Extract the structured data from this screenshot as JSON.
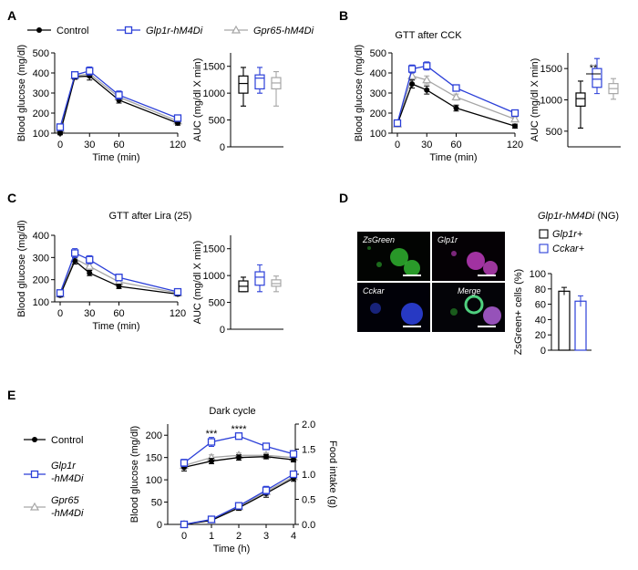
{
  "panels": {
    "A": "A",
    "B": "B",
    "C": "C",
    "D": "D",
    "E": "E"
  },
  "legend": {
    "control": "Control",
    "glp1r": "Glp1r-hM4Di",
    "gpr65": "Gpr65-hM4Di"
  },
  "legendE": {
    "control": "Control",
    "glp1r_l1": "Glp1r",
    "glp1r_l2": "-hM4Di",
    "gpr65_l1": "Gpr65",
    "gpr65_l2": "-hM4Di"
  },
  "colors": {
    "control": "#000000",
    "glp1r": "#2b3fd8",
    "gpr65": "#a6a6a6",
    "green": "#2fb12f",
    "magenta": "#c83fc8",
    "blue": "#2b3fd8"
  },
  "titles": {
    "B": "GTT after CCK",
    "C": "GTT after Lira (25)",
    "D": "Glp1r-hM4Di",
    "D_suffix": " (NG)",
    "E": "Dark cycle"
  },
  "axis": {
    "bg": "Blood glucose (mg/dl)",
    "auc": "AUC (mg/dl X min)",
    "time": "Time (min)",
    "timeh": "Time (h)",
    "food": "Food intake (g)",
    "zs": "ZsGreen+ cells (%)"
  },
  "micro": {
    "zsgreen": "ZsGreen",
    "glp1r": "Glp1r",
    "cckar": "Cckar",
    "merge": "Merge"
  },
  "legendD": {
    "glp1r": "Glp1r+",
    "cckar": "Cckar+"
  },
  "stars": {
    "B": "**",
    "E1": "***",
    "E2": "****"
  },
  "chart_data": [
    {
      "id": "A-gtt",
      "type": "line",
      "xlabel": "Time (min)",
      "ylabel": "Blood glucose (mg/dl)",
      "x": [
        0,
        15,
        30,
        60,
        120
      ],
      "xticks": [
        0,
        30,
        60,
        120
      ],
      "yticks": [
        100,
        200,
        300,
        400,
        500
      ],
      "ylim": [
        100,
        500
      ],
      "series": [
        {
          "name": "Control",
          "values": [
            100,
            380,
            385,
            265,
            150
          ],
          "err": [
            8,
            12,
            20,
            15,
            10
          ]
        },
        {
          "name": "Glp1r-hM4Di",
          "values": [
            130,
            390,
            410,
            290,
            175
          ],
          "err": [
            10,
            12,
            20,
            20,
            12
          ]
        },
        {
          "name": "Gpr65-hM4Di",
          "values": [
            120,
            385,
            395,
            280,
            160
          ],
          "err": [
            10,
            12,
            18,
            18,
            12
          ]
        }
      ]
    },
    {
      "id": "A-auc",
      "type": "box",
      "ylabel": "AUC (mg/dl X min)",
      "yticks": [
        0,
        500,
        1000,
        1500
      ],
      "ylim": [
        0,
        1750
      ],
      "series": [
        {
          "name": "Control",
          "min": 760,
          "q1": 1000,
          "median": 1180,
          "q3": 1320,
          "max": 1480
        },
        {
          "name": "Glp1r-hM4Di",
          "min": 1000,
          "q1": 1080,
          "median": 1280,
          "q3": 1340,
          "max": 1480
        },
        {
          "name": "Gpr65-hM4Di",
          "min": 760,
          "q1": 1080,
          "median": 1190,
          "q3": 1290,
          "max": 1400
        }
      ]
    },
    {
      "id": "B-gtt",
      "type": "line",
      "xlabel": "Time (min)",
      "ylabel": "Blood glucose (mg/dl)",
      "x": [
        0,
        15,
        30,
        60,
        120
      ],
      "xticks": [
        0,
        30,
        60,
        120
      ],
      "yticks": [
        100,
        200,
        300,
        400,
        500
      ],
      "ylim": [
        100,
        500
      ],
      "series": [
        {
          "name": "Control",
          "values": [
            145,
            345,
            315,
            225,
            135
          ],
          "err": [
            10,
            20,
            20,
            15,
            10
          ]
        },
        {
          "name": "Glp1r-hM4Di",
          "values": [
            150,
            420,
            435,
            325,
            200
          ],
          "err": [
            10,
            20,
            20,
            15,
            10
          ]
        },
        {
          "name": "Gpr65-hM4Di",
          "values": [
            145,
            385,
            365,
            280,
            170
          ],
          "err": [
            10,
            20,
            20,
            15,
            10
          ]
        }
      ]
    },
    {
      "id": "B-auc",
      "type": "box",
      "ylabel": "AUC (mg/dl X min)",
      "yticks": [
        500,
        1000,
        1500
      ],
      "ylim": [
        250,
        1750
      ],
      "series": [
        {
          "name": "Control",
          "min": 550,
          "q1": 900,
          "median": 1020,
          "q3": 1110,
          "max": 1300
        },
        {
          "name": "Glp1r-hM4Di",
          "min": 1100,
          "q1": 1200,
          "median": 1330,
          "q3": 1500,
          "max": 1660
        },
        {
          "name": "Gpr65-hM4Di",
          "min": 1010,
          "q1": 1100,
          "median": 1180,
          "q3": 1260,
          "max": 1340
        }
      ]
    },
    {
      "id": "C-gtt",
      "type": "line",
      "xlabel": "Time (min)",
      "ylabel": "Blood glucose (mg/dl)",
      "x": [
        0,
        15,
        30,
        60,
        120
      ],
      "xticks": [
        0,
        30,
        60,
        120
      ],
      "yticks": [
        100,
        200,
        300,
        400
      ],
      "ylim": [
        100,
        400
      ],
      "series": [
        {
          "name": "Control",
          "values": [
            130,
            285,
            230,
            170,
            135
          ],
          "err": [
            8,
            15,
            12,
            10,
            8
          ]
        },
        {
          "name": "Glp1r-hM4Di",
          "values": [
            140,
            320,
            290,
            210,
            145
          ],
          "err": [
            8,
            20,
            18,
            15,
            8
          ]
        },
        {
          "name": "Gpr65-hM4Di",
          "values": [
            135,
            295,
            260,
            190,
            140
          ],
          "err": [
            8,
            18,
            15,
            12,
            8
          ]
        }
      ]
    },
    {
      "id": "C-auc",
      "type": "box",
      "ylabel": "AUC (mg/dl X min)",
      "yticks": [
        0,
        500,
        1000,
        1500
      ],
      "ylim": [
        0,
        1750
      ],
      "series": [
        {
          "name": "Control",
          "min": 700,
          "q1": 700,
          "median": 800,
          "q3": 900,
          "max": 970
        },
        {
          "name": "Glp1r-hM4Di",
          "min": 700,
          "q1": 820,
          "median": 970,
          "q3": 1070,
          "max": 1200
        },
        {
          "name": "Gpr65-hM4Di",
          "min": 700,
          "q1": 800,
          "median": 850,
          "q3": 920,
          "max": 990
        }
      ]
    },
    {
      "id": "D-bar",
      "type": "bar",
      "ylabel": "ZsGreen+ cells (%)",
      "categories": [
        "Glp1r+",
        "Cckar+"
      ],
      "values": [
        77,
        64
      ],
      "err": [
        5,
        7
      ],
      "yticks": [
        0,
        20,
        40,
        60,
        80,
        100
      ],
      "ylim": [
        0,
        100
      ]
    },
    {
      "id": "E-glucose",
      "type": "line",
      "xlabel": "Time (h)",
      "ylabel": "Blood glucose (mg/dl)",
      "y2label": "Food intake (g)",
      "x": [
        0,
        1,
        2,
        3,
        4
      ],
      "xticks": [
        0,
        1,
        2,
        3,
        4
      ],
      "yticks": [
        0,
        50,
        100,
        150,
        200
      ],
      "ylim": [
        0,
        225
      ],
      "y2ticks": [
        "0.0",
        "0.5",
        "1.0",
        "1.5",
        "2.0"
      ],
      "y2lim": [
        0,
        2.0
      ],
      "series": [
        {
          "name": "Control",
          "values": [
            128,
            142,
            150,
            152,
            145
          ],
          "err": [
            8,
            6,
            6,
            5,
            5
          ]
        },
        {
          "name": "Glp1r-hM4Di",
          "values": [
            138,
            185,
            198,
            175,
            158
          ],
          "err": [
            8,
            10,
            5,
            5,
            5
          ]
        },
        {
          "name": "Gpr65-hM4Di",
          "values": [
            132,
            150,
            155,
            155,
            150
          ],
          "err": [
            8,
            6,
            5,
            5,
            5
          ]
        }
      ],
      "food": [
        {
          "name": "Control",
          "values": [
            0,
            0.08,
            0.33,
            0.62,
            0.92
          ],
          "err": [
            0.01,
            0.02,
            0.05,
            0.08,
            0.06
          ]
        },
        {
          "name": "Glp1r-hM4Di",
          "values": [
            0,
            0.1,
            0.37,
            0.68,
            1.0
          ],
          "err": [
            0.01,
            0.02,
            0.05,
            0.08,
            0.06
          ]
        },
        {
          "name": "Gpr65-hM4Di",
          "values": [
            0,
            0.09,
            0.35,
            0.65,
            0.95
          ],
          "err": [
            0.01,
            0.02,
            0.05,
            0.08,
            0.06
          ]
        }
      ]
    }
  ]
}
